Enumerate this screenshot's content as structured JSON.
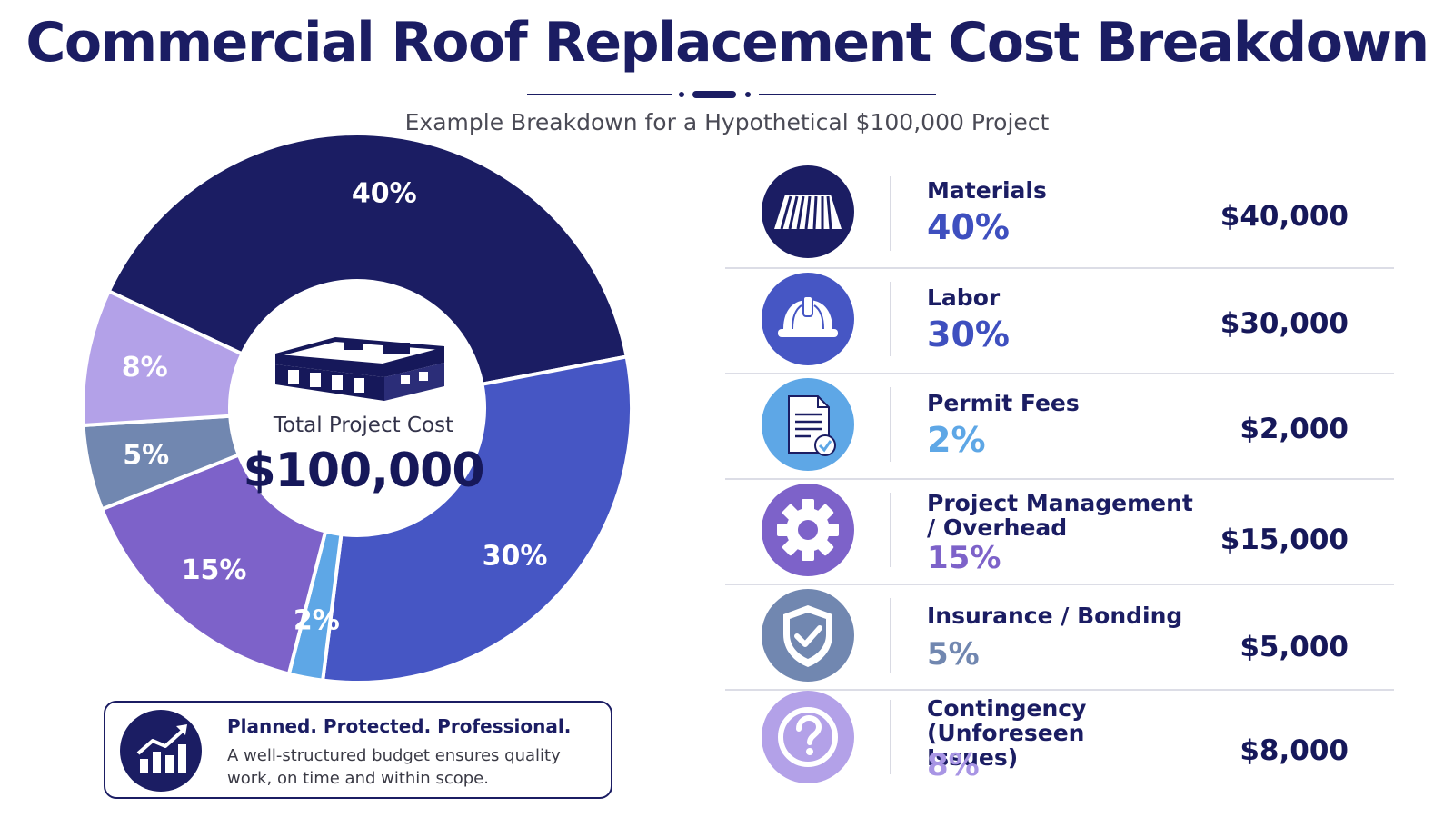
{
  "title": "Commercial Roof Replacement Cost Breakdown",
  "subtitle": "Example Breakdown for a Hypothetical $100,000 Project",
  "center": {
    "label": "Total Project Cost",
    "value": "$100,000",
    "icon": "commercial-building-icon"
  },
  "tagline": {
    "heading": "Planned. Protected. Professional.",
    "text": "A well-structured budget ensures quality work, on time and within scope.",
    "icon": "growth-chart-icon"
  },
  "items": [
    {
      "label": "Materials",
      "percent_text": "40%",
      "amount": "$40,000",
      "icon": "roof-panel-icon",
      "color": "#1b1d63",
      "pct_color": "#3e4fbf"
    },
    {
      "label": "Labor",
      "percent_text": "30%",
      "amount": "$30,000",
      "icon": "hard-hat-icon",
      "color": "#4656c4",
      "pct_color": "#3e4fbf"
    },
    {
      "label": "Permit Fees",
      "percent_text": "2%",
      "amount": "$2,000",
      "icon": "document-check-icon",
      "color": "#5ea7e6",
      "pct_color": "#5ea7e6"
    },
    {
      "label": "Project Management / Overhead",
      "percent_text": "15%",
      "amount": "$15,000",
      "icon": "gear-icon",
      "color": "#7d62c9",
      "pct_color": "#7d62c9"
    },
    {
      "label": "Insurance / Bonding",
      "percent_text": "5%",
      "amount": "$5,000",
      "icon": "shield-check-icon",
      "color": "#7187b0",
      "pct_color": "#7187b0"
    },
    {
      "label": "Contingency (Unforeseen Issues)",
      "percent_text": "8%",
      "amount": "$8,000",
      "icon": "question-mark-icon",
      "color": "#b3a1e8",
      "pct_color": "#a895e4"
    }
  ],
  "chart_data": {
    "type": "pie",
    "categories": [
      "Materials",
      "Labor",
      "Permit Fees",
      "Project Management / Overhead",
      "Insurance / Bonding",
      "Contingency (Unforeseen Issues)"
    ],
    "values": [
      40,
      30,
      2,
      15,
      5,
      8
    ],
    "labels": [
      "40%",
      "30%",
      "2%",
      "15%",
      "5%",
      "8%"
    ],
    "amounts": [
      40000,
      30000,
      2000,
      15000,
      5000,
      8000
    ],
    "colors": [
      "#1b1d63",
      "#4656c4",
      "#5ea7e6",
      "#7d62c9",
      "#7187b0",
      "#b3a1e8"
    ],
    "title": "Commercial Roof Replacement Cost Breakdown",
    "total": 100000,
    "donut": true
  }
}
